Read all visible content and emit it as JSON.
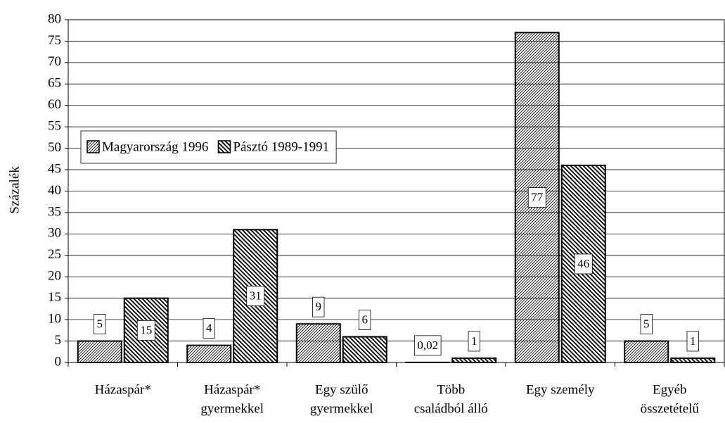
{
  "chart_data": {
    "type": "bar",
    "y_label": "Százalék",
    "categories": [
      [
        "Házaspár*"
      ],
      [
        "Házaspár*",
        "gyermekkel"
      ],
      [
        "Egy szülő",
        "gyermekkel"
      ],
      [
        "Több",
        "családból álló"
      ],
      [
        "Egy személy"
      ],
      [
        "Egyéb",
        "összetételű"
      ]
    ],
    "series": [
      {
        "name": "Magyarország 1996",
        "color": "#000000",
        "hatch": "forward",
        "values": [
          5,
          4,
          9,
          0.02,
          77,
          5
        ],
        "value_labels": [
          "5",
          "4",
          "9",
          "0,02",
          "77",
          "5"
        ]
      },
      {
        "name": "Pásztó 1989-1991",
        "color": "#000000",
        "hatch": "back",
        "values": [
          15,
          31,
          6,
          1,
          46,
          1
        ]
      }
    ],
    "ylim": [
      0,
      80
    ],
    "yticks": [
      0,
      5,
      10,
      15,
      20,
      25,
      30,
      35,
      40,
      45,
      50,
      55,
      60,
      65,
      70,
      75,
      80
    ],
    "grid": true,
    "legend": "upper left"
  }
}
